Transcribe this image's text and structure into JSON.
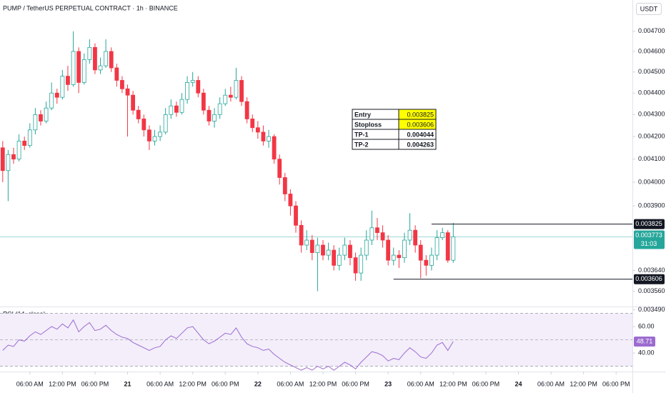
{
  "header": {
    "title": "PUMP / TetherUS PERPETUAL CONTRACT · 1h · BINANCE",
    "currency": "USDT"
  },
  "chart_data": {
    "type": "candlestick",
    "log_scale": true,
    "xlim": [
      -0.5,
      116
    ],
    "xticks": [
      {
        "value": 5,
        "label": "06:00 AM"
      },
      {
        "value": 11,
        "label": "12:00 PM"
      },
      {
        "value": 17,
        "label": "06:00 PM"
      },
      {
        "value": 23,
        "label": "21"
      },
      {
        "value": 29,
        "label": "06:00 AM"
      },
      {
        "value": 35,
        "label": "12:00 PM"
      },
      {
        "value": 41,
        "label": "06:00 PM"
      },
      {
        "value": 47,
        "label": "22"
      },
      {
        "value": 53,
        "label": "06:00 AM"
      },
      {
        "value": 59,
        "label": "12:00 PM"
      },
      {
        "value": 65,
        "label": "06:00 PM"
      },
      {
        "value": 71,
        "label": "23"
      },
      {
        "value": 77,
        "label": "06:00 AM"
      },
      {
        "value": 83,
        "label": "12:00 PM"
      },
      {
        "value": 89,
        "label": "06:00 PM"
      },
      {
        "value": 95,
        "label": "24"
      },
      {
        "value": 101,
        "label": "06:00 AM"
      },
      {
        "value": 107,
        "label": "12:00 PM"
      },
      {
        "value": 113,
        "label": "06:00 PM"
      }
    ],
    "ylim": [
      0.003505,
      0.00486
    ],
    "yticks": [
      {
        "value": 0.0047,
        "label": "0.004700"
      },
      {
        "value": 0.0046,
        "label": "0.004600"
      },
      {
        "value": 0.0045,
        "label": "0.004500"
      },
      {
        "value": 0.0044,
        "label": "0.004400"
      },
      {
        "value": 0.0043,
        "label": "0.004300"
      },
      {
        "value": 0.0042,
        "label": "0.004200"
      },
      {
        "value": 0.0041,
        "label": "0.004100"
      },
      {
        "value": 0.004,
        "label": "0.004000"
      },
      {
        "value": 0.0039,
        "label": "0.003900"
      },
      {
        "value": 0.00364,
        "label": "0.003640"
      },
      {
        "value": 0.00356,
        "label": "0.003560"
      },
      {
        "value": 0.00349,
        "label": "0.003490"
      }
    ],
    "up_color": "#26a69a",
    "down_color": "#f23645",
    "open": [
      0.00415,
      0.00405,
      0.00412,
      0.0041,
      0.00418,
      0.00416,
      0.00423,
      0.0043,
      0.00427,
      0.00433,
      0.0044,
      0.00438,
      0.00448,
      0.00444,
      0.0046,
      0.00445,
      0.00456,
      0.00462,
      0.00451,
      0.00453,
      0.0046,
      0.00452,
      0.00446,
      0.00442,
      0.00439,
      0.00432,
      0.00428,
      0.00423,
      0.00418,
      0.0042,
      0.00422,
      0.0043,
      0.00434,
      0.00431,
      0.00437,
      0.00445,
      0.00446,
      0.0044,
      0.00432,
      0.00427,
      0.0043,
      0.00435,
      0.00439,
      0.00438,
      0.00446,
      0.00436,
      0.00428,
      0.00424,
      0.00422,
      0.00418,
      0.0042,
      0.0041,
      0.00402,
      0.00395,
      0.0039,
      0.00382,
      0.00374,
      0.00376,
      0.00371,
      0.00374,
      0.0037,
      0.00372,
      0.00366,
      0.0037,
      0.00374,
      0.00369,
      0.00363,
      0.0037,
      0.00376,
      0.00381,
      0.00379,
      0.00376,
      0.00368,
      0.0037,
      0.00369,
      0.00376,
      0.0038,
      0.00374,
      0.00368,
      0.00366,
      0.0037,
      0.00377,
      0.00379,
      0.00368
    ],
    "high": [
      0.00418,
      0.00414,
      0.00415,
      0.00421,
      0.0042,
      0.00426,
      0.00433,
      0.00432,
      0.00436,
      0.00445,
      0.00442,
      0.00451,
      0.00453,
      0.0047,
      0.00462,
      0.00459,
      0.00466,
      0.00464,
      0.00457,
      0.00466,
      0.00462,
      0.00454,
      0.00448,
      0.00444,
      0.00441,
      0.00434,
      0.0043,
      0.00425,
      0.00423,
      0.00425,
      0.00433,
      0.00437,
      0.00436,
      0.0044,
      0.00448,
      0.0045,
      0.00448,
      0.00442,
      0.00434,
      0.00433,
      0.00438,
      0.00442,
      0.00443,
      0.00452,
      0.00448,
      0.00438,
      0.0043,
      0.00427,
      0.00425,
      0.00423,
      0.00421,
      0.00412,
      0.00404,
      0.00397,
      0.00392,
      0.00384,
      0.0038,
      0.00378,
      0.00377,
      0.00376,
      0.00375,
      0.00374,
      0.00373,
      0.00377,
      0.00376,
      0.00371,
      0.00373,
      0.0038,
      0.00388,
      0.00385,
      0.00382,
      0.00378,
      0.00373,
      0.00372,
      0.00379,
      0.00387,
      0.00382,
      0.00376,
      0.0037,
      0.00373,
      0.0038,
      0.00381,
      0.0038,
      0.00383
    ],
    "low": [
      0.004,
      0.00392,
      0.00408,
      0.00409,
      0.00414,
      0.00415,
      0.00421,
      0.00425,
      0.00426,
      0.00432,
      0.00435,
      0.00437,
      0.00441,
      0.00443,
      0.0044,
      0.00444,
      0.00454,
      0.00449,
      0.00449,
      0.00452,
      0.0045,
      0.00443,
      0.0044,
      0.0042,
      0.0043,
      0.00426,
      0.0042,
      0.00414,
      0.00416,
      0.00418,
      0.00421,
      0.00428,
      0.00429,
      0.0043,
      0.00435,
      0.00443,
      0.00438,
      0.0043,
      0.00425,
      0.00424,
      0.00428,
      0.00434,
      0.00436,
      0.00437,
      0.00434,
      0.00426,
      0.00422,
      0.00419,
      0.00416,
      0.00415,
      0.00408,
      0.00399,
      0.00392,
      0.00386,
      0.00379,
      0.00371,
      0.00372,
      0.00368,
      0.00356,
      0.00368,
      0.00368,
      0.00364,
      0.00364,
      0.00368,
      0.00366,
      0.0036,
      0.0036,
      0.00368,
      0.00374,
      0.00376,
      0.00373,
      0.00366,
      0.00366,
      0.00365,
      0.00367,
      0.00374,
      0.00371,
      0.00361,
      0.00362,
      0.00364,
      0.00368,
      0.00376,
      0.00367,
      0.00367
    ],
    "close": [
      0.00405,
      0.00412,
      0.0041,
      0.00418,
      0.00416,
      0.00423,
      0.0043,
      0.00427,
      0.00433,
      0.0044,
      0.00438,
      0.00448,
      0.00444,
      0.0046,
      0.00445,
      0.00456,
      0.00462,
      0.00451,
      0.00453,
      0.0046,
      0.00452,
      0.00446,
      0.00442,
      0.00439,
      0.00432,
      0.00428,
      0.00423,
      0.00418,
      0.0042,
      0.00422,
      0.0043,
      0.00434,
      0.00431,
      0.00437,
      0.00445,
      0.00446,
      0.0044,
      0.00432,
      0.00427,
      0.0043,
      0.00435,
      0.00439,
      0.00438,
      0.00446,
      0.00436,
      0.00428,
      0.00424,
      0.00422,
      0.00418,
      0.0042,
      0.0041,
      0.00402,
      0.00395,
      0.0039,
      0.00382,
      0.00374,
      0.00376,
      0.00371,
      0.00374,
      0.0037,
      0.00372,
      0.00366,
      0.0037,
      0.00374,
      0.00369,
      0.00363,
      0.0037,
      0.00376,
      0.00381,
      0.00379,
      0.00376,
      0.00368,
      0.0037,
      0.00369,
      0.00376,
      0.0038,
      0.00374,
      0.00368,
      0.00366,
      0.0037,
      0.00377,
      0.00379,
      0.00368,
      0.003773
    ],
    "countdown": "31:03",
    "levels": [
      {
        "label": "Entry",
        "value": 0.003825,
        "highlight": true
      },
      {
        "label": "Stoploss",
        "value": 0.003606,
        "highlight": true
      },
      {
        "label": "TP-1",
        "value": 0.004044,
        "highlight": false
      },
      {
        "label": "TP-2",
        "value": 0.004263,
        "highlight": false
      }
    ],
    "indicator": {
      "type": "line",
      "title": "RSI (14, close)",
      "color": "#9c6bcf",
      "band_color": "#f3eefa",
      "ylim": [
        26,
        74.6
      ],
      "yticks": [
        {
          "value": 60,
          "label": "60.00"
        },
        {
          "value": 40,
          "label": "40.00"
        }
      ],
      "bands": [
        70,
        50,
        30
      ],
      "values": [
        42,
        46,
        45,
        50,
        49,
        53,
        56,
        54,
        57,
        60,
        58,
        62,
        59,
        65,
        56,
        60,
        63,
        57,
        58,
        61,
        57,
        54,
        52,
        51,
        48,
        46,
        44,
        42,
        44,
        45,
        50,
        53,
        51,
        55,
        59,
        60,
        55,
        50,
        47,
        49,
        52,
        55,
        54,
        59,
        52,
        47,
        45,
        44,
        42,
        43,
        39,
        36,
        33,
        31,
        29,
        27,
        29,
        27,
        30,
        28,
        30,
        27,
        30,
        33,
        31,
        28,
        33,
        37,
        41,
        40,
        38,
        34,
        36,
        35,
        40,
        44,
        41,
        37,
        36,
        40,
        46,
        48,
        42,
        48.71
      ]
    }
  }
}
